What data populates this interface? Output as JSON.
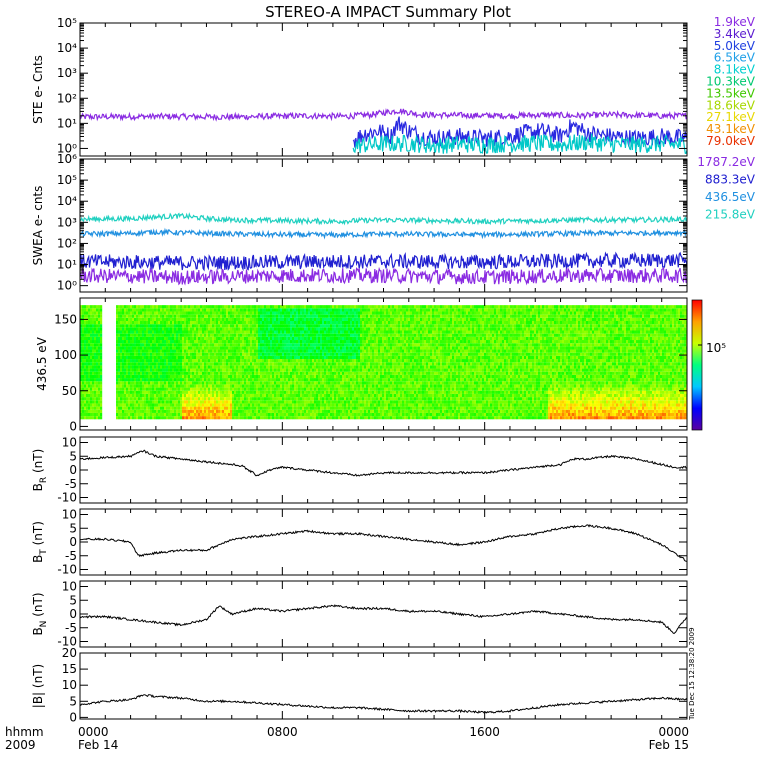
{
  "title": "STEREO-A IMPACT Summary Plot",
  "stamp": "Tue Dec 15 12:38:20 2009",
  "x_axis": {
    "row1_label": "hhmm",
    "row2_label": "2009",
    "ticks": [
      {
        "hour": 0,
        "label": "0000",
        "sub": "Feb 14"
      },
      {
        "hour": 8,
        "label": "0800",
        "sub": ""
      },
      {
        "hour": 16,
        "label": "1600",
        "sub": ""
      },
      {
        "hour": 24,
        "label": "0000",
        "sub": "Feb 15"
      }
    ],
    "minor_step_hours": 1
  },
  "colorbar": {
    "tick_label": "10⁵",
    "colors": [
      "#5a00a0",
      "#0000ff",
      "#00c8ff",
      "#00ff80",
      "#c8ff00",
      "#ffa000",
      "#ff0000"
    ]
  },
  "chart_data": [
    {
      "id": "ste",
      "type": "line",
      "ylabel": "STE e- Cnts",
      "yscale": "log",
      "ylim": [
        0.5,
        100000
      ],
      "ytick_labels": [
        "10⁰",
        "10¹",
        "10²",
        "10³",
        "10⁴",
        "10⁵"
      ],
      "ytick_exps": [
        0,
        1,
        2,
        3,
        4,
        5
      ],
      "legend": [
        {
          "label": "1.9keV",
          "color": "#8a2be2"
        },
        {
          "label": "3.4keV",
          "color": "#5a1ad0"
        },
        {
          "label": "5.0keV",
          "color": "#2040e0"
        },
        {
          "label": "6.5keV",
          "color": "#20a0e8"
        },
        {
          "label": "8.1keV",
          "color": "#00d0d0"
        },
        {
          "label": "10.3keV",
          "color": "#00c870"
        },
        {
          "label": "13.5keV",
          "color": "#40c800"
        },
        {
          "label": "18.6keV",
          "color": "#a8d800"
        },
        {
          "label": "27.1keV",
          "color": "#e8d800"
        },
        {
          "label": "43.1keV",
          "color": "#f09000"
        },
        {
          "label": "79.0keV",
          "color": "#e83000"
        }
      ],
      "series": [
        {
          "color": "#8a2be2",
          "x": [
            0,
            3,
            6,
            9,
            10.5,
            11.5,
            12.6,
            13.5,
            15,
            17,
            18.5,
            19.5,
            21,
            23,
            24
          ],
          "y": [
            18,
            19,
            18,
            20,
            19,
            22,
            32,
            22,
            21,
            20,
            22,
            20,
            22,
            20,
            20
          ]
        },
        {
          "color": "#2828e0",
          "x": [
            10.8,
            11.3,
            11.8,
            12.3,
            12.6,
            13,
            13.5,
            14.2,
            15,
            16,
            17,
            17.5,
            18.2,
            19,
            19.5,
            20,
            21,
            22,
            23,
            24
          ],
          "y": [
            2,
            4,
            5,
            3,
            10,
            5,
            3,
            2.5,
            3,
            2.5,
            3,
            4,
            5,
            3,
            8,
            4,
            3,
            2.5,
            3,
            2.5
          ]
        },
        {
          "color": "#00c8c8",
          "x": [
            10.8,
            12,
            13,
            14,
            15,
            16,
            17,
            18,
            19,
            20,
            21,
            22,
            23,
            24
          ],
          "y": [
            1.3,
            1.5,
            1.6,
            1.3,
            1.5,
            1.4,
            1.5,
            1.6,
            1.4,
            1.8,
            1.5,
            1.4,
            1.5,
            1.4
          ]
        }
      ]
    },
    {
      "id": "swea",
      "type": "line",
      "ylabel": "SWEA e- cnts",
      "yscale": "log",
      "ylim": [
        0.5,
        1000000
      ],
      "ytick_labels": [
        "10⁰",
        "10¹",
        "10²",
        "10³",
        "10⁴",
        "10⁵",
        "10⁶"
      ],
      "ytick_exps": [
        0,
        1,
        2,
        3,
        4,
        5,
        6
      ],
      "legend": [
        {
          "label": "1787.2eV",
          "color": "#8a2be2"
        },
        {
          "label": "883.3eV",
          "color": "#2020d0"
        },
        {
          "label": "436.5eV",
          "color": "#2090e0"
        },
        {
          "label": "215.8eV",
          "color": "#20d0c0"
        }
      ],
      "series": [
        {
          "color": "#20d0c0",
          "x": [
            0,
            2,
            3,
            4,
            5,
            6,
            8,
            10,
            12,
            14,
            16,
            18,
            20,
            22,
            24
          ],
          "y": [
            1400,
            1500,
            1800,
            2000,
            1500,
            1300,
            1200,
            1100,
            1300,
            1200,
            1100,
            1200,
            1300,
            1300,
            1400
          ]
        },
        {
          "color": "#2090e0",
          "x": [
            0,
            2,
            3,
            4,
            5,
            6,
            8,
            10,
            12,
            14,
            16,
            18,
            20,
            22,
            24
          ],
          "y": [
            280,
            300,
            350,
            320,
            300,
            280,
            260,
            250,
            280,
            270,
            260,
            280,
            300,
            310,
            330
          ]
        },
        {
          "color": "#2020d0",
          "x": [
            0,
            4,
            8,
            12,
            16,
            20,
            24
          ],
          "y": [
            14,
            12,
            13,
            14,
            13,
            15,
            16
          ]
        },
        {
          "color": "#8a2be2",
          "x": [
            0,
            4,
            8,
            12,
            16,
            20,
            24
          ],
          "y": [
            3,
            2.5,
            3,
            3,
            2.5,
            3,
            3
          ]
        }
      ]
    },
    {
      "id": "pad",
      "type": "heatmap",
      "ylabel": "436.5 eV",
      "ylim": [
        -5,
        180
      ],
      "yticks": [
        0,
        50,
        100,
        150
      ]
    },
    {
      "id": "br",
      "type": "line",
      "ylabel": "B",
      "ylabel_sub": "R",
      "ylabel_unit": " (nT)",
      "ylim": [
        -12,
        12
      ],
      "yticks": [
        -10,
        -5,
        0,
        5,
        10
      ],
      "series": [
        {
          "color": "#000000",
          "x": [
            0,
            1,
            2,
            2.5,
            3,
            4,
            5,
            6,
            6.4,
            7,
            7.5,
            8,
            9,
            10,
            11,
            12,
            13,
            14,
            15,
            16,
            17,
            18,
            19,
            19.5,
            20,
            21,
            22,
            23,
            23.5,
            24
          ],
          "y": [
            4,
            4.5,
            5,
            7,
            5,
            4,
            3,
            2,
            1.5,
            -2,
            0,
            1,
            0,
            -1,
            -2,
            -1,
            -1,
            -1,
            -1,
            -1,
            0,
            1,
            2,
            4,
            4,
            5,
            4,
            2,
            1,
            1
          ]
        }
      ]
    },
    {
      "id": "bt",
      "type": "line",
      "ylabel": "B",
      "ylabel_sub": "T",
      "ylabel_unit": " (nT)",
      "ylim": [
        -12,
        12
      ],
      "yticks": [
        -10,
        -5,
        0,
        5,
        10
      ],
      "series": [
        {
          "color": "#000000",
          "x": [
            0,
            1,
            2,
            2.3,
            3,
            4,
            5,
            5.5,
            6,
            7,
            8,
            9,
            10,
            11,
            12,
            13,
            14,
            15,
            16,
            17,
            18,
            19,
            20,
            21,
            22,
            23,
            24
          ],
          "y": [
            1,
            1,
            0,
            -5,
            -4,
            -3,
            -3,
            -1,
            1,
            2,
            3,
            4,
            3,
            3,
            2,
            1,
            0,
            -1,
            0,
            2,
            3,
            5,
            6,
            5,
            3,
            -1,
            -7
          ]
        }
      ]
    },
    {
      "id": "bn",
      "type": "line",
      "ylabel": "B",
      "ylabel_sub": "N",
      "ylabel_unit": " (nT)",
      "ylim": [
        -12,
        12
      ],
      "yticks": [
        -10,
        -5,
        0,
        5,
        10
      ],
      "series": [
        {
          "color": "#000000",
          "x": [
            0,
            1,
            2,
            3,
            4,
            5,
            5.5,
            6,
            7,
            8,
            9,
            10,
            11,
            12,
            13,
            14,
            15,
            16,
            17,
            18,
            19,
            20,
            21,
            22,
            23,
            23.5,
            24
          ],
          "y": [
            -1,
            -1,
            -2,
            -3,
            -4,
            -2,
            3,
            0,
            2,
            1,
            2,
            3,
            2,
            2,
            1,
            1,
            0,
            -1,
            0,
            1,
            0,
            -1,
            -2,
            -2,
            -3,
            -7,
            -1
          ]
        }
      ]
    },
    {
      "id": "bmag",
      "type": "line",
      "ylabel": "|B| (nT)",
      "ylim": [
        -0.5,
        20
      ],
      "yticks": [
        0,
        5,
        10,
        15,
        20
      ],
      "series": [
        {
          "color": "#000000",
          "x": [
            0,
            1,
            2,
            2.5,
            3,
            4,
            5,
            6,
            7,
            8,
            9,
            10,
            11,
            12,
            13,
            14,
            15,
            16,
            17,
            18,
            19,
            20,
            21,
            22,
            23,
            24
          ],
          "y": [
            4,
            5,
            5.5,
            7,
            6.5,
            6,
            5,
            5,
            4.5,
            4,
            3.5,
            3,
            3,
            2.5,
            2,
            2,
            2,
            1.5,
            2,
            3,
            4,
            4.5,
            5,
            5.5,
            6,
            5.5
          ]
        }
      ]
    }
  ]
}
